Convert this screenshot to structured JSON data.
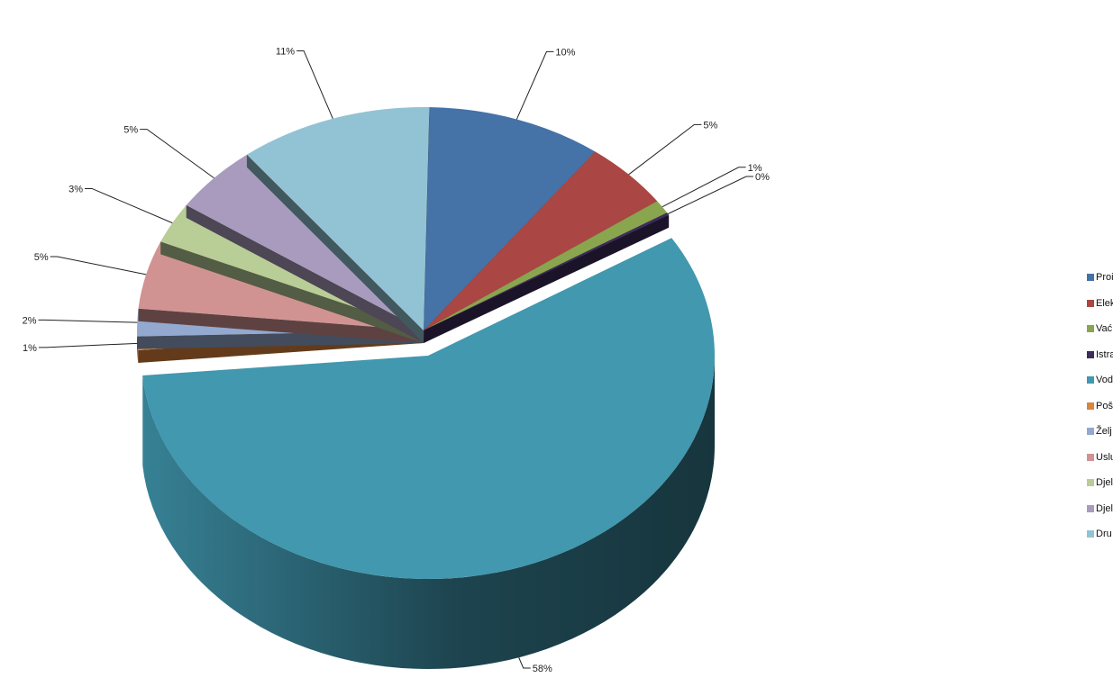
{
  "chart_data": {
    "type": "pie",
    "variant": "3d-exploded",
    "title": "",
    "legend_position": "right",
    "categories": [
      "Proi",
      "Elek",
      "Vać",
      "Istra",
      "Vod",
      "Poš",
      "Želj",
      "Uslu",
      "Djel",
      "Djel",
      "Dru"
    ],
    "values": [
      10,
      5,
      1,
      0,
      58,
      1,
      2,
      5,
      3,
      5,
      11
    ],
    "labels": [
      "10%",
      "5%",
      "1%",
      "0%",
      "58%",
      "1%",
      "2%",
      "5%",
      "3%",
      "5%",
      "11%"
    ],
    "colors": [
      "#4572A7",
      "#AA4643",
      "#89A54E",
      "#3D2C5C",
      "#4198AF",
      "#DB843D",
      "#93A9CF",
      "#D19392",
      "#B9CD96",
      "#A99BBD",
      "#92C3D4"
    ]
  }
}
